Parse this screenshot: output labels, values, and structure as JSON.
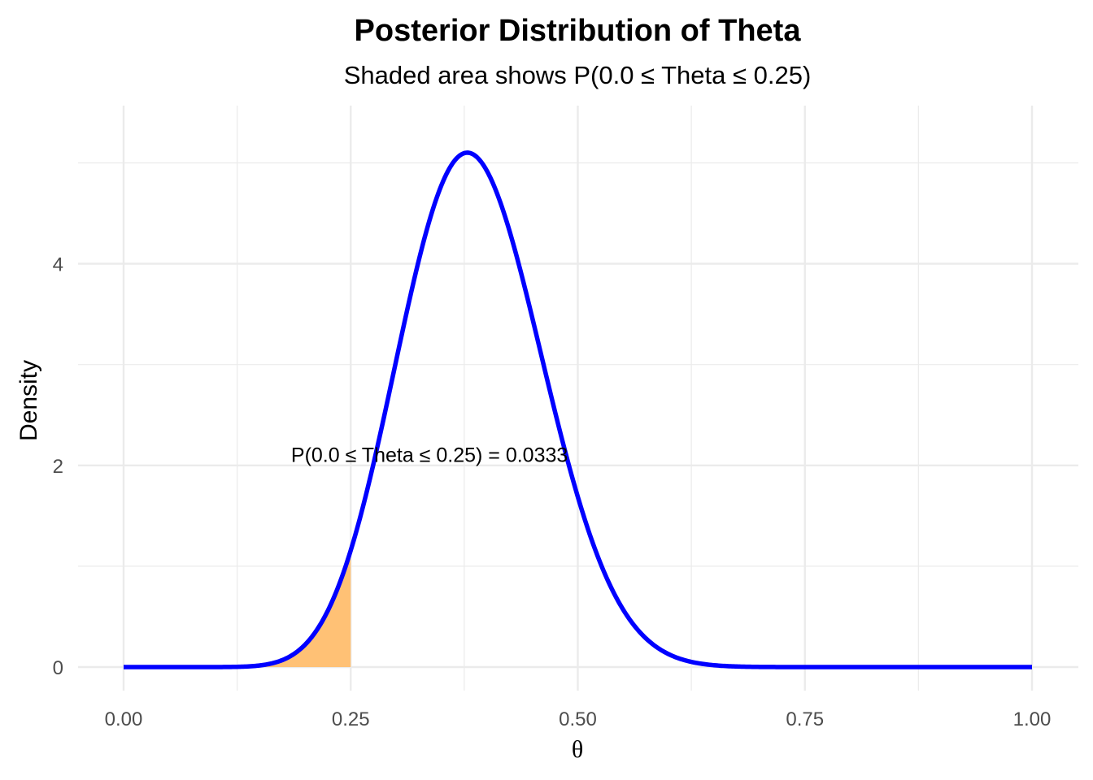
{
  "chart_data": {
    "type": "area",
    "title": "Posterior Distribution of Theta",
    "subtitle": "Shaded area shows P(0.0 ≤ Theta ≤ 0.25)",
    "xlabel": "θ",
    "ylabel": "Density",
    "xlim": [
      0,
      1
    ],
    "ylim": [
      0,
      5.3
    ],
    "x_ticks": [
      "0.00",
      "0.25",
      "0.50",
      "0.75",
      "1.00"
    ],
    "y_ticks": [
      "0",
      "2",
      "4"
    ],
    "grid": true,
    "distribution": {
      "family": "beta",
      "alpha": 15,
      "beta": 24
    },
    "series": [
      {
        "kind": "density-curve",
        "color": "#0000ff",
        "x": [
          0.0,
          0.05,
          0.1,
          0.15,
          0.18,
          0.2,
          0.22,
          0.25,
          0.28,
          0.3,
          0.33,
          0.35,
          0.375,
          0.4,
          0.42,
          0.45,
          0.48,
          0.5,
          0.53,
          0.55,
          0.6,
          0.65,
          0.7,
          0.8,
          0.9,
          1.0
        ],
        "y": [
          0.0,
          0.0,
          0.0011,
          0.028,
          0.12,
          0.27,
          0.53,
          1.21,
          2.31,
          3.15,
          4.4,
          5.0,
          5.28,
          5.06,
          4.6,
          3.58,
          2.4,
          1.66,
          0.86,
          0.51,
          0.11,
          0.016,
          0.0011,
          0.0,
          0.0,
          0.0
        ]
      }
    ],
    "shaded_region": {
      "x_from": 0.0,
      "x_to": 0.25,
      "color": "#ffc175"
    },
    "annotation": {
      "text": "P(0.0 ≤ Theta ≤ 0.25) = 0.0333",
      "x": 0.3367,
      "y": 2.1
    }
  }
}
